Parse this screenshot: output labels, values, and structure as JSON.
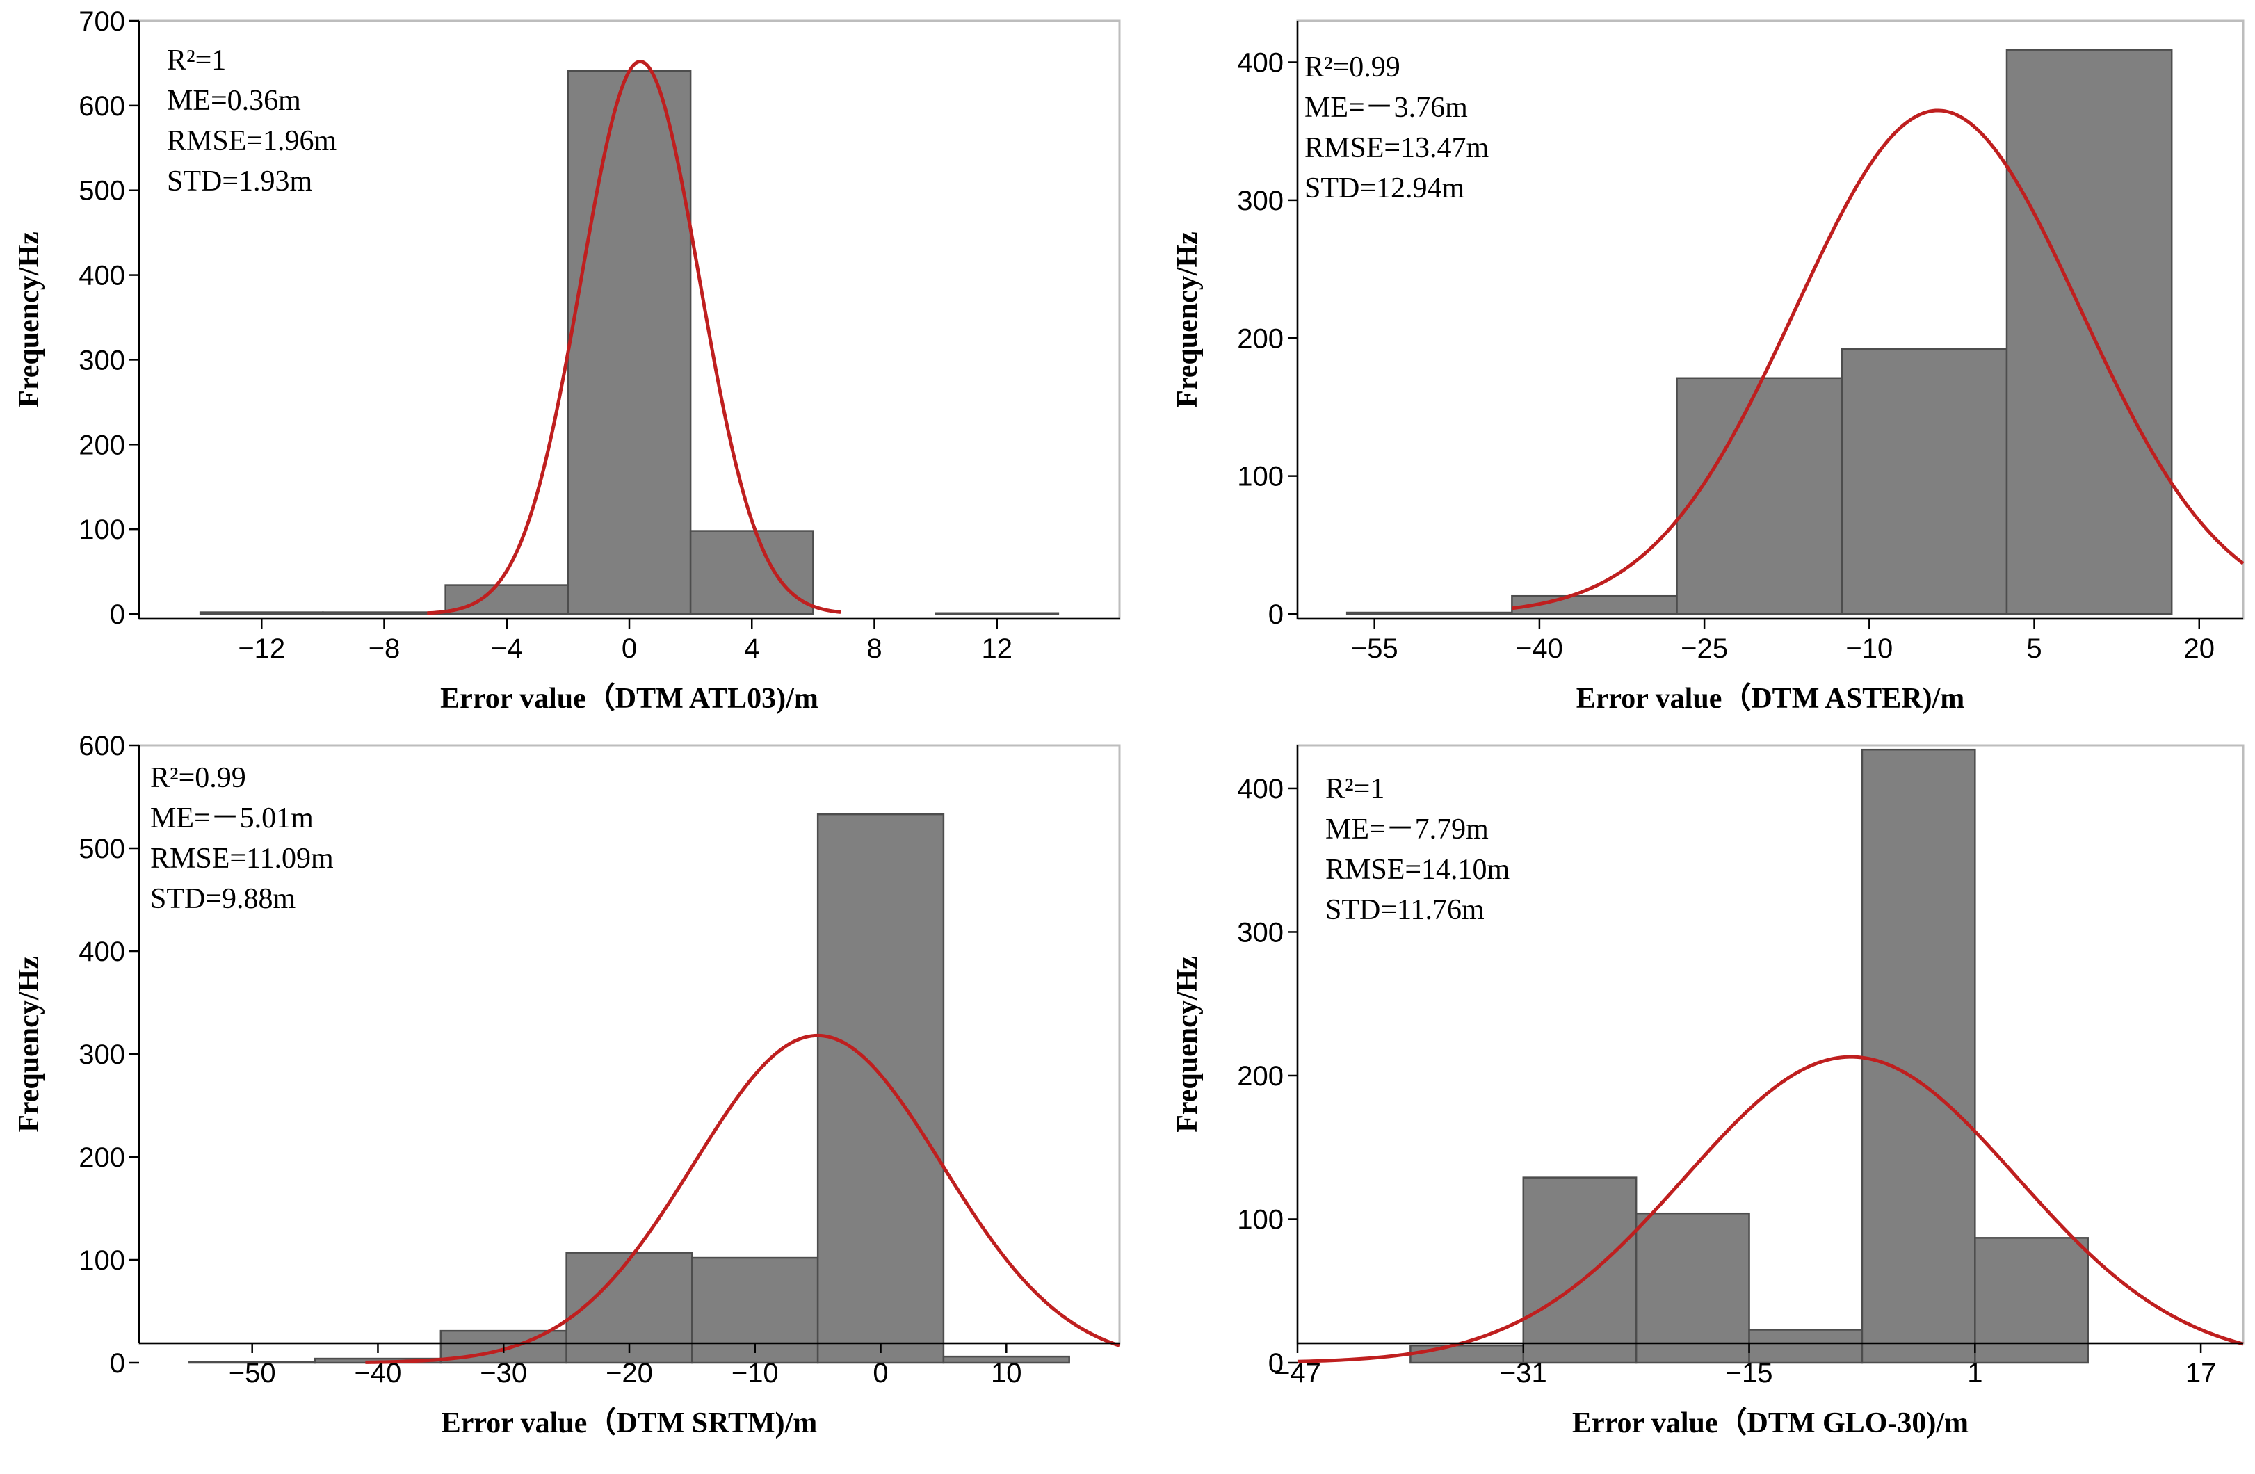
{
  "chart_data": [
    {
      "type": "bar",
      "panel": "top-left",
      "title": "",
      "xlabel": "Error value（DTM ATL03)/m",
      "ylabel": "Frequency/Hz",
      "xlim": [
        -16,
        16
      ],
      "ylim": [
        0,
        700
      ],
      "xticks": [
        -12,
        -8,
        -4,
        0,
        4,
        8,
        12
      ],
      "xtick_labels": [
        "−12",
        "−8",
        "−4",
        "0",
        "4",
        "8",
        "12"
      ],
      "yticks": [
        0,
        100,
        200,
        300,
        400,
        500,
        600,
        700
      ],
      "ytick_labels": [
        "0",
        "100",
        "200",
        "300",
        "400",
        "500",
        "600",
        "700"
      ],
      "bins": [
        {
          "x0": -14,
          "x1": -10,
          "count": 2
        },
        {
          "x0": -10,
          "x1": -6,
          "count": 2
        },
        {
          "x0": -6,
          "x1": -2,
          "count": 34
        },
        {
          "x0": -2,
          "x1": 2,
          "count": 641
        },
        {
          "x0": 2,
          "x1": 6,
          "count": 98
        },
        {
          "x0": 6,
          "x1": 10,
          "count": 0
        },
        {
          "x0": 10,
          "x1": 14,
          "count": 1
        }
      ],
      "fit_curve": {
        "type": "normal",
        "mean": 0.36,
        "std": 1.93,
        "peak": 652,
        "x_range": [
          -6.6,
          6.9
        ]
      },
      "annotations": [
        "R²=1",
        "ME=0.36m",
        "RMSE=1.96m",
        "STD=1.93m"
      ]
    },
    {
      "type": "bar",
      "panel": "top-right",
      "title": "",
      "xlabel": "Error value（DTM ASTER)/m",
      "ylabel": "Frequency/Hz",
      "xlim": [
        -62,
        24
      ],
      "ylim": [
        0,
        430
      ],
      "xticks": [
        -55,
        -40,
        -25,
        -10,
        5,
        20
      ],
      "xtick_labels": [
        "−55",
        "−40",
        "−25",
        "−10",
        "5",
        "20"
      ],
      "yticks": [
        0,
        100,
        200,
        300,
        400
      ],
      "ytick_labels": [
        "0",
        "100",
        "200",
        "300",
        "400"
      ],
      "bins": [
        {
          "x0": -57.5,
          "x1": -42.5,
          "count": 1
        },
        {
          "x0": -42.5,
          "x1": -27.5,
          "count": 13
        },
        {
          "x0": -27.5,
          "x1": -12.5,
          "count": 171
        },
        {
          "x0": -12.5,
          "x1": 2.5,
          "count": 192
        },
        {
          "x0": 2.5,
          "x1": 17.5,
          "count": 409
        },
        {
          "x0": 17.5,
          "x1": 22.5,
          "count": 0
        }
      ],
      "fit_curve": {
        "type": "normal",
        "mean": -3.76,
        "std": 12.94,
        "peak": 365,
        "x_range": [
          -42.5,
          24
        ]
      },
      "annotations": [
        "R²=0.99",
        "ME=－3.76m",
        "RMSE=13.47m",
        "STD=12.94m"
      ]
    },
    {
      "type": "bar",
      "panel": "bottom-left",
      "title": "",
      "xlabel": "Error value（DTM SRTM)/m",
      "ylabel": "Frequency/Hz",
      "xlim": [
        -59,
        19
      ],
      "ylim": [
        0,
        600
      ],
      "xticks": [
        -50,
        -40,
        -30,
        -20,
        -10,
        0,
        10
      ],
      "xtick_labels": [
        "−50",
        "−40",
        "−30",
        "−20",
        "−10",
        "0",
        "10"
      ],
      "yticks": [
        0,
        100,
        200,
        300,
        400,
        500,
        600
      ],
      "ytick_labels": [
        "0",
        "100",
        "200",
        "300",
        "400",
        "500",
        "600"
      ],
      "bins": [
        {
          "x0": -55,
          "x1": -45,
          "count": 1
        },
        {
          "x0": -45,
          "x1": -35,
          "count": 4
        },
        {
          "x0": -35,
          "x1": -25,
          "count": 31
        },
        {
          "x0": -25,
          "x1": -15,
          "count": 107
        },
        {
          "x0": -15,
          "x1": -5,
          "count": 102
        },
        {
          "x0": -5,
          "x1": 5,
          "count": 533
        },
        {
          "x0": 5,
          "x1": 15,
          "count": 6
        }
      ],
      "fit_curve": {
        "type": "normal",
        "mean": -5.01,
        "std": 9.88,
        "peak": 318,
        "x_range": [
          -41,
          19
        ]
      },
      "annotations": [
        "R²=0.99",
        "ME=－5.01m",
        "RMSE=11.09m",
        "STD=9.88m"
      ]
    },
    {
      "type": "bar",
      "panel": "bottom-right",
      "title": "",
      "xlabel": "Error value（DTM GLO-30)/m",
      "ylabel": "Frequency/Hz",
      "xlim": [
        -47,
        20
      ],
      "ylim": [
        0,
        430
      ],
      "xticks": [
        -47,
        -31,
        -15,
        1,
        17
      ],
      "xtick_labels": [
        "−47",
        "−31",
        "−15",
        "1",
        "17"
      ],
      "yticks": [
        0,
        100,
        200,
        300,
        400
      ],
      "ytick_labels": [
        "0",
        "100",
        "200",
        "300",
        "400"
      ],
      "bins": [
        {
          "x0": -39,
          "x1": -31,
          "count": 12
        },
        {
          "x0": -31,
          "x1": -23,
          "count": 129
        },
        {
          "x0": -23,
          "x1": -15,
          "count": 104
        },
        {
          "x0": -15,
          "x1": -7,
          "count": 23
        },
        {
          "x0": -7,
          "x1": 1,
          "count": 427
        },
        {
          "x0": 1,
          "x1": 9,
          "count": 87
        }
      ],
      "fit_curve": {
        "type": "normal",
        "mean": -7.79,
        "std": 11.76,
        "peak": 213,
        "x_range": [
          -47,
          20
        ]
      },
      "annotations": [
        "R²=1",
        "ME=－7.79m",
        "RMSE=14.10m",
        "STD=11.76m"
      ]
    }
  ],
  "colors": {
    "bar_fill": "#808080",
    "bar_edge": "#4d4d4d",
    "curve": "#bf1f1f",
    "frame": "#bdbdbd"
  }
}
